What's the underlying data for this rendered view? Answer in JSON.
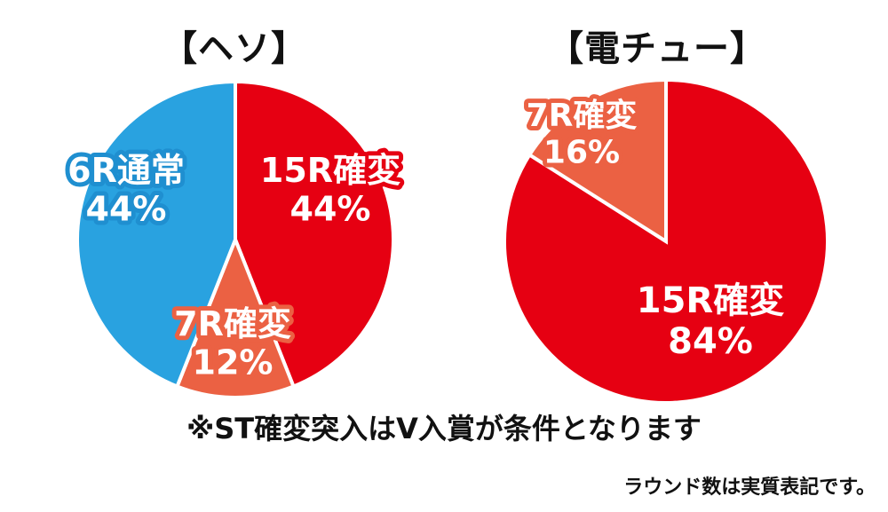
{
  "chart_data": [
    {
      "type": "pie",
      "title": "【ヘソ】",
      "slices": [
        {
          "label": "15R確変",
          "value": 44,
          "value_label": "44%",
          "color": "#e60012"
        },
        {
          "label": "7R確変",
          "value": 12,
          "value_label": "12%",
          "color": "#eb6143"
        },
        {
          "label": "6R通常",
          "value": 44,
          "value_label": "44%",
          "color": "#29a2e0"
        }
      ]
    },
    {
      "type": "pie",
      "title": "【電チュー】",
      "slices": [
        {
          "label": "15R確変",
          "value": 84,
          "value_label": "84%",
          "color": "#e60012"
        },
        {
          "label": "7R確変",
          "value": 16,
          "value_label": "16%",
          "color": "#eb6143"
        }
      ]
    }
  ],
  "note": "※ST確変突入はV入賞が条件となります",
  "footnote": "ラウンド数は実質表記です。"
}
